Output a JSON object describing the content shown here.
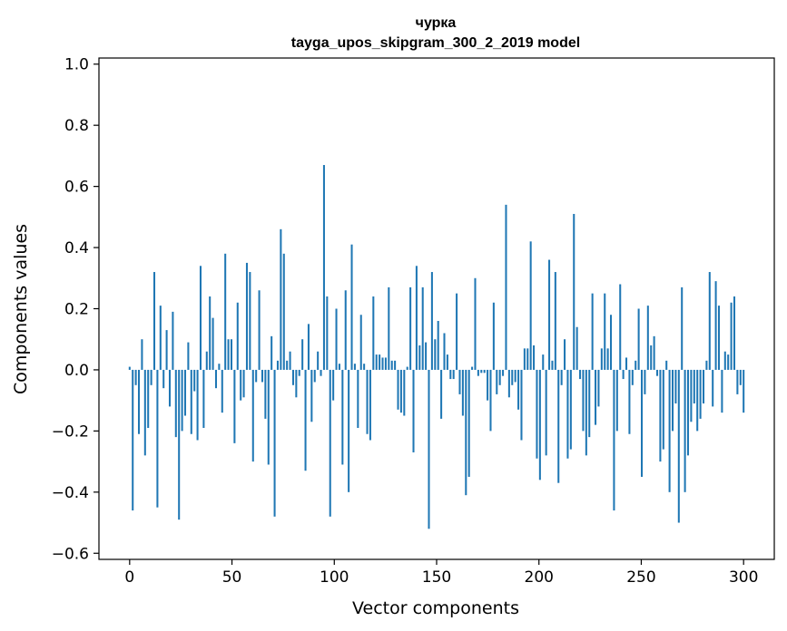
{
  "chart_data": {
    "type": "bar",
    "title": "чурка",
    "subtitle": "tayga_upos_skipgram_300_2_2019 model",
    "xlabel": "Vector components",
    "ylabel": "Components values",
    "xlim": [
      -15,
      315
    ],
    "ylim": [
      -0.62,
      1.02
    ],
    "xticks": [
      0,
      50,
      100,
      150,
      200,
      250,
      300
    ],
    "yticks": [
      -0.6,
      -0.4,
      -0.2,
      0.0,
      0.2,
      0.4,
      0.6,
      0.8,
      1.0
    ],
    "ytick_labels": [
      "−0.6",
      "−0.4",
      "−0.2",
      "0.0",
      "0.2",
      "0.4",
      "0.6",
      "0.8",
      "1.0"
    ],
    "bar_color": "#1f77b4",
    "values": [
      0.01,
      -0.46,
      -0.05,
      -0.21,
      0.1,
      -0.28,
      -0.19,
      -0.05,
      0.32,
      -0.45,
      0.21,
      -0.06,
      0.13,
      -0.12,
      0.19,
      -0.22,
      -0.49,
      -0.2,
      -0.15,
      0.09,
      -0.21,
      -0.07,
      -0.23,
      0.34,
      -0.19,
      0.06,
      0.24,
      0.17,
      -0.06,
      0.02,
      -0.14,
      0.38,
      0.1,
      0.1,
      -0.24,
      0.22,
      -0.1,
      -0.09,
      0.35,
      0.32,
      -0.3,
      -0.04,
      0.26,
      -0.04,
      -0.16,
      -0.31,
      0.11,
      -0.48,
      0.03,
      0.46,
      0.38,
      0.03,
      0.06,
      -0.05,
      -0.09,
      -0.02,
      0.1,
      -0.33,
      0.15,
      -0.17,
      -0.04,
      0.06,
      -0.02,
      0.67,
      0.24,
      -0.48,
      -0.1,
      0.2,
      0.02,
      -0.31,
      0.26,
      -0.4,
      0.41,
      0.02,
      -0.19,
      0.18,
      0.02,
      -0.21,
      -0.23,
      0.24,
      0.05,
      0.05,
      0.04,
      0.04,
      0.27,
      0.03,
      0.03,
      -0.13,
      -0.14,
      -0.15,
      0.01,
      0.27,
      -0.27,
      0.34,
      0.08,
      0.27,
      0.09,
      -0.52,
      0.32,
      0.1,
      0.16,
      -0.16,
      0.12,
      0.05,
      -0.03,
      -0.03,
      0.25,
      -0.08,
      -0.15,
      -0.41,
      -0.35,
      0.01,
      0.3,
      -0.02,
      -0.01,
      -0.01,
      -0.1,
      -0.2,
      0.22,
      -0.08,
      -0.05,
      -0.02,
      0.54,
      -0.09,
      -0.05,
      -0.04,
      -0.13,
      -0.23,
      0.07,
      0.07,
      0.42,
      0.08,
      -0.29,
      -0.36,
      0.05,
      -0.28,
      0.36,
      0.03,
      0.32,
      -0.37,
      -0.05,
      0.1,
      -0.29,
      -0.26,
      0.51,
      0.14,
      -0.03,
      -0.2,
      -0.28,
      -0.22,
      0.25,
      -0.18,
      -0.12,
      0.07,
      0.25,
      0.07,
      0.18,
      -0.46,
      -0.2,
      0.28,
      -0.03,
      0.04,
      -0.21,
      -0.05,
      0.03,
      0.2,
      -0.35,
      -0.08,
      0.21,
      0.08,
      0.11,
      -0.02,
      -0.3,
      -0.26,
      0.03,
      -0.4,
      -0.2,
      -0.11,
      -0.5,
      0.27,
      -0.4,
      -0.28,
      -0.17,
      -0.11,
      -0.2,
      -0.16,
      -0.11,
      0.03,
      0.32,
      -0.12,
      0.29,
      0.21,
      -0.14,
      0.06,
      0.05,
      0.22,
      0.24,
      -0.08,
      -0.05,
      -0.14
    ]
  }
}
